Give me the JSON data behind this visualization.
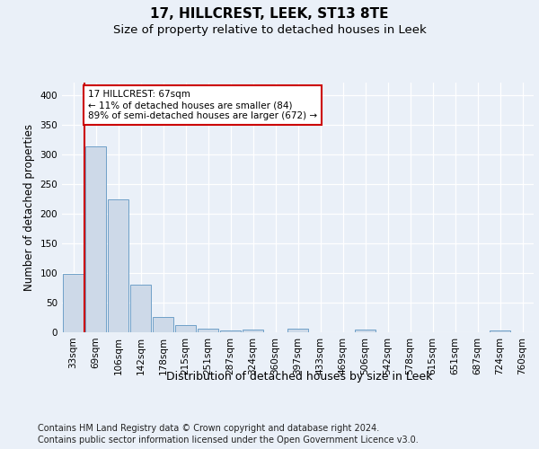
{
  "title": "17, HILLCREST, LEEK, ST13 8TE",
  "subtitle": "Size of property relative to detached houses in Leek",
  "xlabel": "Distribution of detached houses by size in Leek",
  "ylabel": "Number of detached properties",
  "footnote1": "Contains HM Land Registry data © Crown copyright and database right 2024.",
  "footnote2": "Contains public sector information licensed under the Open Government Licence v3.0.",
  "bar_labels": [
    "33sqm",
    "69sqm",
    "106sqm",
    "142sqm",
    "178sqm",
    "215sqm",
    "251sqm",
    "287sqm",
    "324sqm",
    "360sqm",
    "397sqm",
    "433sqm",
    "469sqm",
    "506sqm",
    "542sqm",
    "578sqm",
    "615sqm",
    "651sqm",
    "687sqm",
    "724sqm",
    "760sqm"
  ],
  "bar_values": [
    98,
    313,
    224,
    80,
    25,
    12,
    6,
    3,
    4,
    0,
    6,
    0,
    0,
    4,
    0,
    0,
    0,
    0,
    0,
    3,
    0
  ],
  "bar_color": "#cdd9e8",
  "bar_edge_color": "#6fa0c8",
  "annotation_text": "17 HILLCREST: 67sqm\n← 11% of detached houses are smaller (84)\n89% of semi-detached houses are larger (672) →",
  "annotation_box_color": "#ffffff",
  "annotation_box_edge_color": "#cc0000",
  "annotation_text_color": "#000000",
  "vline_color": "#cc0000",
  "vline_x_index": 1,
  "ylim": [
    0,
    420
  ],
  "yticks": [
    0,
    50,
    100,
    150,
    200,
    250,
    300,
    350,
    400
  ],
  "bg_color": "#eaf0f8",
  "axes_bg_color": "#eaf0f8",
  "grid_color": "#ffffff",
  "title_fontsize": 11,
  "subtitle_fontsize": 9.5,
  "ylabel_fontsize": 8.5,
  "xlabel_fontsize": 9,
  "tick_fontsize": 7.5,
  "footnote_fontsize": 7
}
